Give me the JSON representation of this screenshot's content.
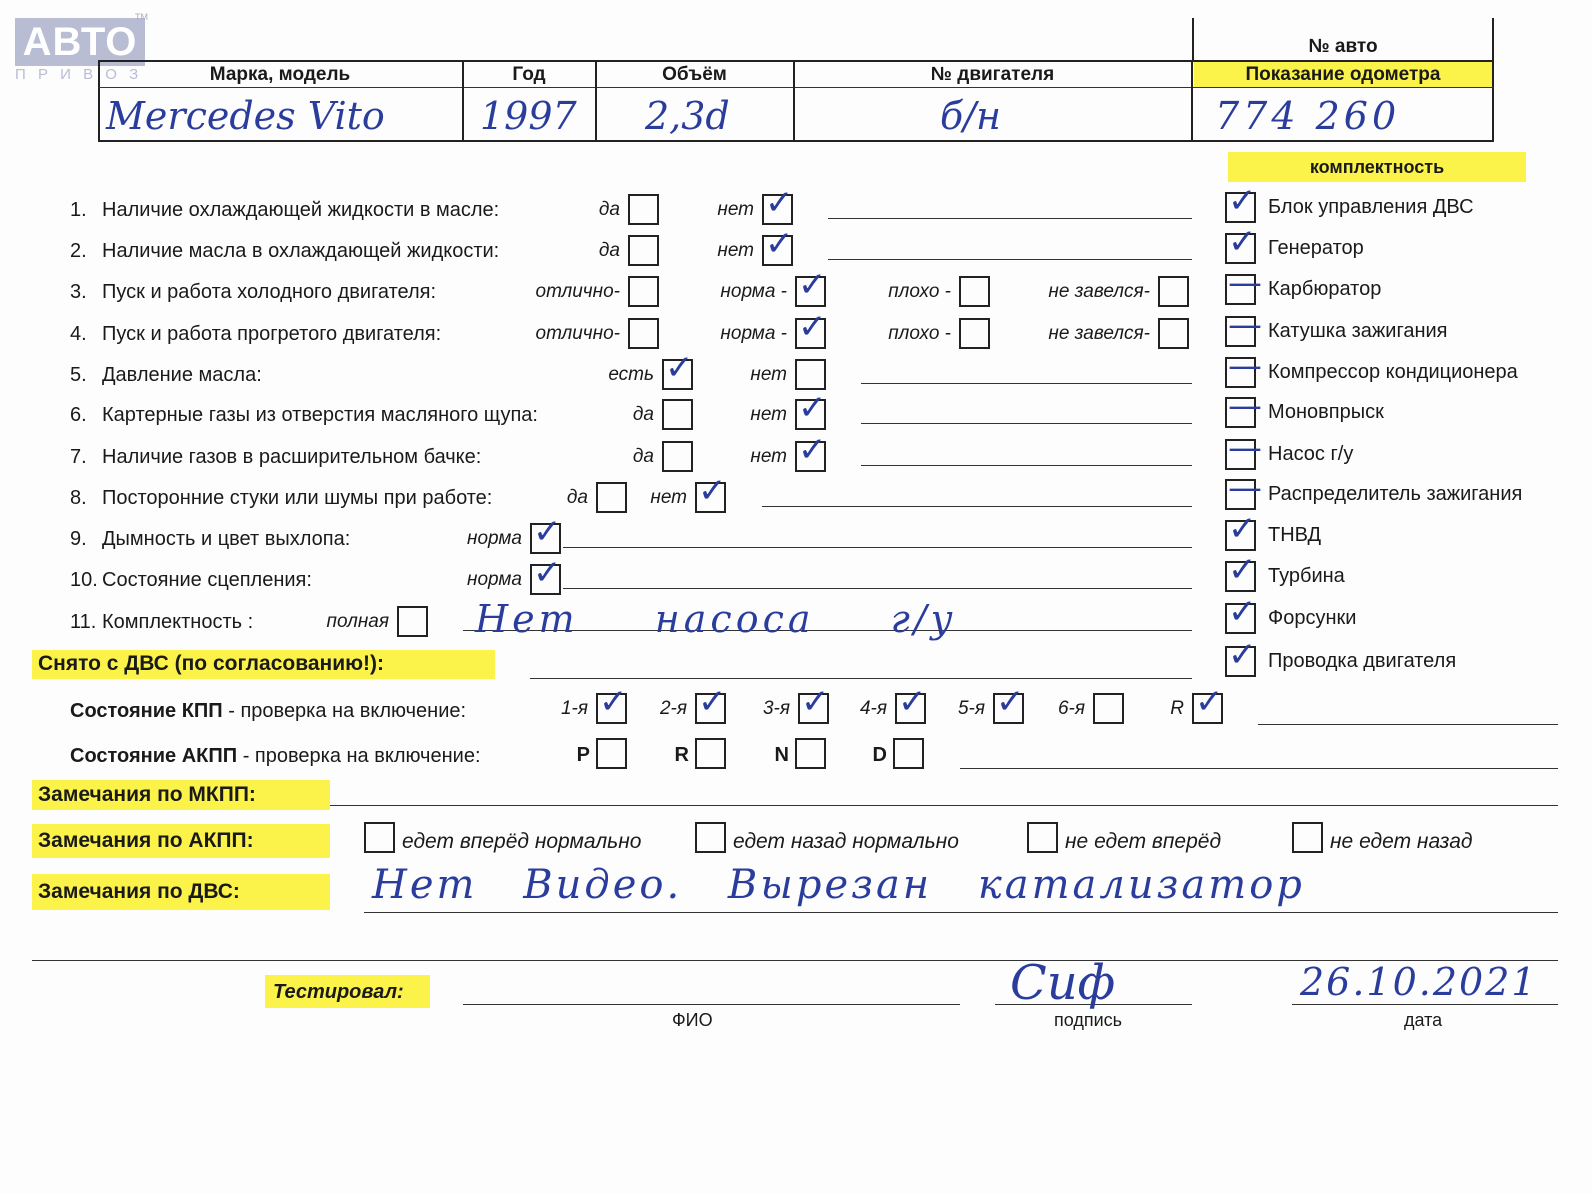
{
  "logo": {
    "text": "АВТО",
    "sub": "П Р И В О З",
    "tm": "TM"
  },
  "header": {
    "columns": [
      "Марка, модель",
      "Год",
      "Объём",
      "№ двигателя"
    ],
    "values": [
      "Mercedes Vito",
      "1997",
      "2,3d",
      "б/н"
    ],
    "auto_no_label": "№ авто",
    "odometer_label": "Показание одометра",
    "odometer_value": "774 260"
  },
  "checks": [
    {
      "num": "1.",
      "label": "Наличие охлаждающей жидкости в масле:",
      "options": [
        {
          "label": "да",
          "checked": false
        },
        {
          "label": "нет",
          "checked": true
        }
      ]
    },
    {
      "num": "2.",
      "label": "Наличие масла в охлаждающей жидкости:",
      "options": [
        {
          "label": "да",
          "checked": false
        },
        {
          "label": "нет",
          "checked": true
        }
      ]
    },
    {
      "num": "3.",
      "label": "Пуск и работа холодного двигателя:",
      "options": [
        {
          "label": "отлично-",
          "checked": false
        },
        {
          "label": "норма -",
          "checked": true
        },
        {
          "label": "плохо -",
          "checked": false
        },
        {
          "label": "не завелся-",
          "checked": false
        }
      ]
    },
    {
      "num": "4.",
      "label": "Пуск и работа прогретого двигателя:",
      "options": [
        {
          "label": "отлично-",
          "checked": false
        },
        {
          "label": "норма -",
          "checked": true
        },
        {
          "label": "плохо -",
          "checked": false
        },
        {
          "label": "не завелся-",
          "checked": false
        }
      ]
    },
    {
      "num": "5.",
      "label": "Давление масла:",
      "options": [
        {
          "label": "есть",
          "checked": true
        },
        {
          "label": "нет",
          "checked": false
        }
      ]
    },
    {
      "num": "6.",
      "label": "Картерные газы из отверстия масляного щупа:",
      "options": [
        {
          "label": "да",
          "checked": false
        },
        {
          "label": "нет",
          "checked": true
        }
      ]
    },
    {
      "num": "7.",
      "label": "Наличие газов в расширительном бачке:",
      "options": [
        {
          "label": "да",
          "checked": false
        },
        {
          "label": "нет",
          "checked": true
        }
      ]
    },
    {
      "num": "8.",
      "label": "Посторонние стуки или шумы при работе:",
      "options": [
        {
          "label": "да",
          "checked": false
        },
        {
          "label": "нет",
          "checked": true
        }
      ]
    },
    {
      "num": "9.",
      "label": "Дымность и цвет выхлопа:",
      "options": [
        {
          "label": "норма",
          "checked": true
        }
      ]
    },
    {
      "num": "10.",
      "label": "Состояние сцепления:",
      "options": [
        {
          "label": "норма",
          "checked": true
        }
      ]
    },
    {
      "num": "11.",
      "label": "Комплектность :",
      "options": [
        {
          "label": "полная",
          "checked": false
        }
      ],
      "note": "Нет насоса г/у"
    }
  ],
  "komplekt": {
    "title": "комплектность",
    "items": [
      {
        "label": "Блок управления ДВС",
        "mark": "check"
      },
      {
        "label": "Генератор",
        "mark": "check"
      },
      {
        "label": "Карбюратор",
        "mark": "dash"
      },
      {
        "label": "Катушка зажигания",
        "mark": "dash"
      },
      {
        "label": "Компрессор кондиционера",
        "mark": "dash"
      },
      {
        "label": "Моновпрыск",
        "mark": "dash"
      },
      {
        "label": "Насос г/у",
        "mark": "dash"
      },
      {
        "label": "Распределитель зажигания",
        "mark": "dash"
      },
      {
        "label": "ТНВД",
        "mark": "check"
      },
      {
        "label": "Турбина",
        "mark": "check"
      },
      {
        "label": "Форсунки",
        "mark": "check"
      },
      {
        "label": "Проводка двигателя",
        "mark": "check"
      }
    ]
  },
  "removed_label": "Снято с ДВС (по согласованию!):",
  "kpp": {
    "label": "Состояние КПП",
    "label_rest": " - проверка на включение:",
    "gears": [
      {
        "label": "1-я",
        "checked": true
      },
      {
        "label": "2-я",
        "checked": true
      },
      {
        "label": "3-я",
        "checked": true
      },
      {
        "label": "4-я",
        "checked": true
      },
      {
        "label": "5-я",
        "checked": true
      },
      {
        "label": "6-я",
        "checked": false
      },
      {
        "label": "R",
        "checked": true
      }
    ]
  },
  "akpp": {
    "label": "Состояние АКПП",
    "label_rest": " - проверка на включение:",
    "gears": [
      {
        "label": "P",
        "checked": false
      },
      {
        "label": "R",
        "checked": false
      },
      {
        "label": "N",
        "checked": false
      },
      {
        "label": "D",
        "checked": false
      }
    ]
  },
  "remarks": {
    "mkpp_label": "Замечания по МКПП:",
    "akpp_label": "Замечания по АКПП:",
    "akpp_options": [
      {
        "label": "едет вперёд нормально",
        "checked": false
      },
      {
        "label": "едет назад нормально",
        "checked": false
      },
      {
        "label": "не едет вперёд",
        "checked": false
      },
      {
        "label": "не едет назад",
        "checked": false
      }
    ],
    "dvs_label": "Замечания по ДВС:",
    "dvs_value": "Нет Видео. Вырезан катализатор"
  },
  "footer": {
    "tested_label": "Тестировал:",
    "fio_label": "ФИО",
    "signature_label": "подпись",
    "date_label": "дата",
    "date_value": "26.10.2021",
    "signature": "Сиф"
  },
  "colors": {
    "highlight": "#fbf24a",
    "ink": "#2a3d9c"
  }
}
